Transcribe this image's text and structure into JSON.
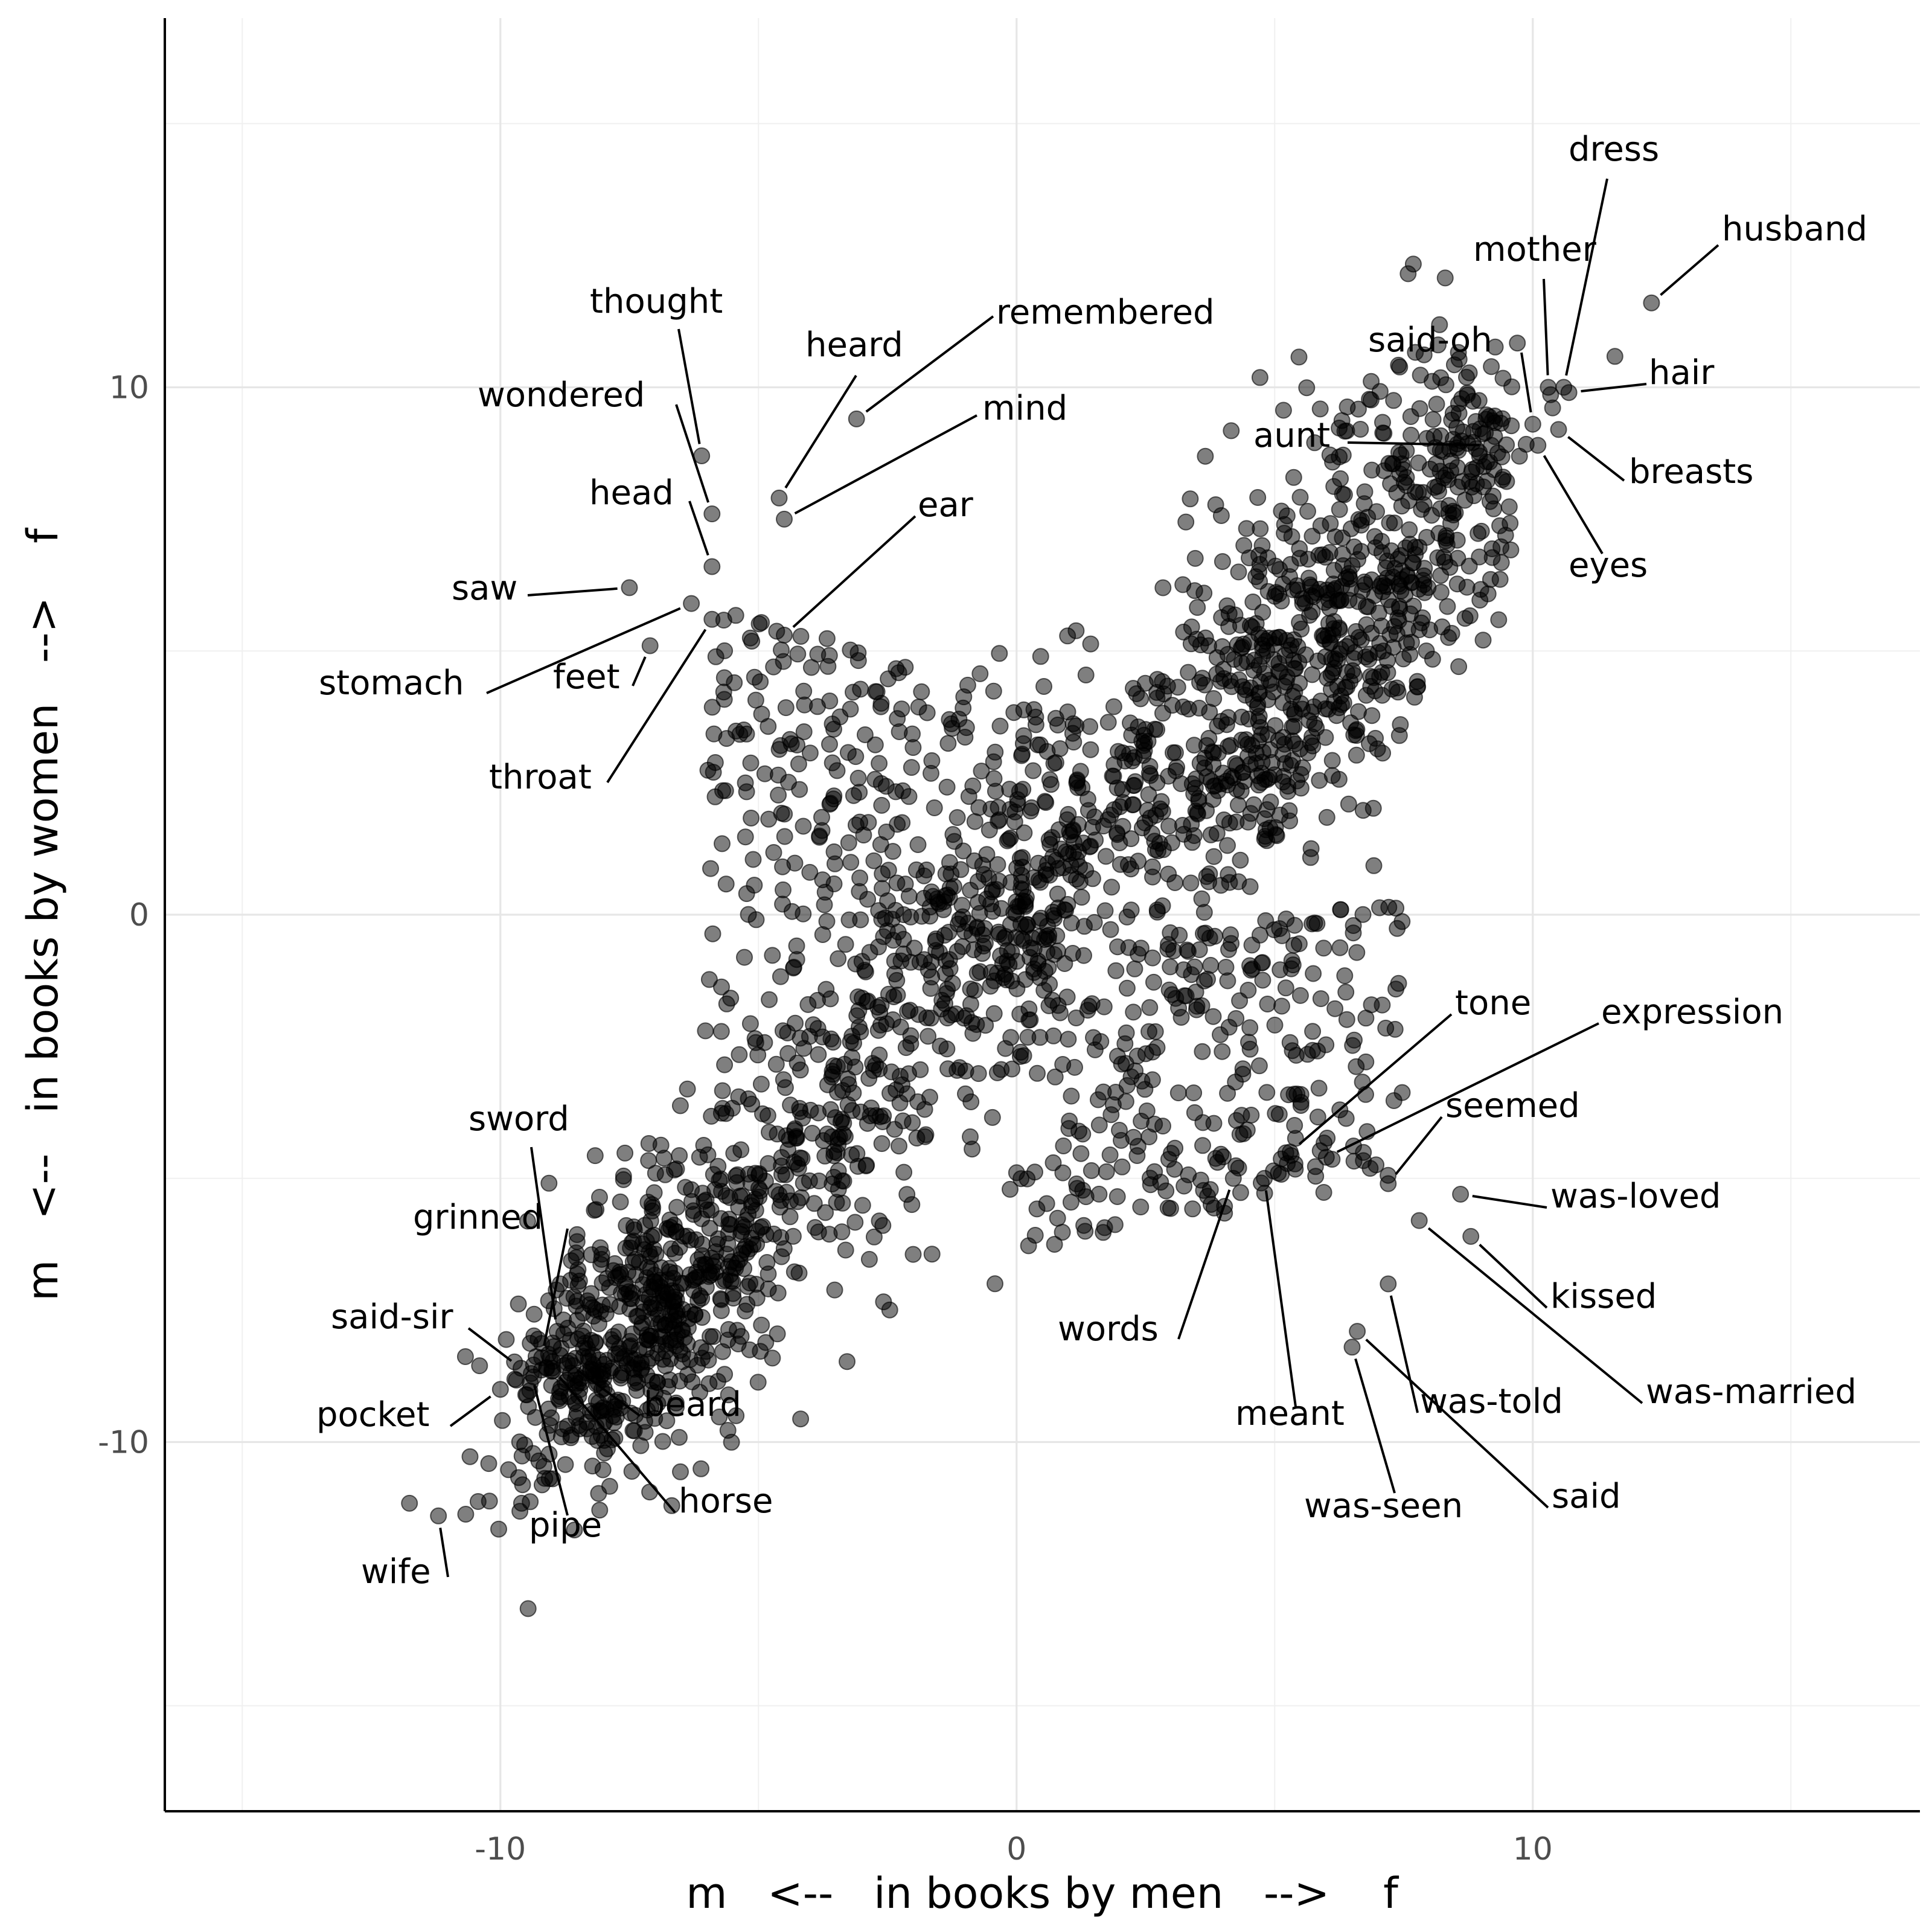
{
  "chart_data": {
    "type": "scatter",
    "xlabel": "m   <--   in books by men   -->    f",
    "ylabel": "m   <--   in books by women   -->    f",
    "xlim": [
      -16.5,
      17.5
    ],
    "ylim": [
      -17,
      17
    ],
    "xticks": [
      -10,
      0,
      10
    ],
    "yticks": [
      -10,
      0,
      10
    ],
    "grid": true,
    "labeled_points": [
      {
        "word": "dress",
        "x": 10.6,
        "y": 10.0
      },
      {
        "word": "mother",
        "x": 10.3,
        "y": 10.0
      },
      {
        "word": "husband",
        "x": 12.3,
        "y": 11.6
      },
      {
        "word": "said-oh",
        "x": 10.0,
        "y": 9.3
      },
      {
        "word": "hair",
        "x": 10.7,
        "y": 9.9
      },
      {
        "word": "aunt",
        "x": 9.2,
        "y": 8.9
      },
      {
        "word": "breasts",
        "x": 10.5,
        "y": 9.2
      },
      {
        "word": "eyes",
        "x": 10.1,
        "y": 8.9
      },
      {
        "word": "thought",
        "x": -6.1,
        "y": 8.7
      },
      {
        "word": "remembered",
        "x": -3.1,
        "y": 9.4
      },
      {
        "word": "heard",
        "x": -4.6,
        "y": 7.9
      },
      {
        "word": "mind",
        "x": -4.5,
        "y": 7.5
      },
      {
        "word": "wondered",
        "x": -5.9,
        "y": 7.6
      },
      {
        "word": "head",
        "x": -5.9,
        "y": 6.6
      },
      {
        "word": "ear",
        "x": -4.5,
        "y": 5.3
      },
      {
        "word": "saw",
        "x": -7.5,
        "y": 6.2
      },
      {
        "word": "stomach",
        "x": -6.3,
        "y": 5.9
      },
      {
        "word": "feet",
        "x": -7.1,
        "y": 5.1
      },
      {
        "word": "throat",
        "x": -5.9,
        "y": 5.6
      },
      {
        "word": "tone",
        "x": 5.3,
        "y": -4.5
      },
      {
        "word": "expression",
        "x": 6.0,
        "y": -4.6
      },
      {
        "word": "seemed",
        "x": 7.2,
        "y": -5.1
      },
      {
        "word": "was-loved",
        "x": 8.6,
        "y": -5.3
      },
      {
        "word": "kissed",
        "x": 8.8,
        "y": -6.1
      },
      {
        "word": "was-married",
        "x": 7.8,
        "y": -5.8
      },
      {
        "word": "words",
        "x": 4.2,
        "y": -5.0
      },
      {
        "word": "meant",
        "x": 4.8,
        "y": -5.0
      },
      {
        "word": "was-told",
        "x": 7.2,
        "y": -7.0
      },
      {
        "word": "said",
        "x": 6.6,
        "y": -7.9
      },
      {
        "word": "was-seen",
        "x": 6.5,
        "y": -8.2
      },
      {
        "word": "sword",
        "x": -8.9,
        "y": -7.9
      },
      {
        "word": "grinned",
        "x": -9.2,
        "y": -8.4
      },
      {
        "word": "said-sir",
        "x": -9.6,
        "y": -8.6
      },
      {
        "word": "beard",
        "x": -8.7,
        "y": -8.5
      },
      {
        "word": "pocket",
        "x": -10.0,
        "y": -9.0
      },
      {
        "word": "pipe",
        "x": -9.4,
        "y": -8.7
      },
      {
        "word": "horse",
        "x": -9.0,
        "y": -8.6
      },
      {
        "word": "wife",
        "x": -11.2,
        "y": -11.4
      }
    ]
  }
}
